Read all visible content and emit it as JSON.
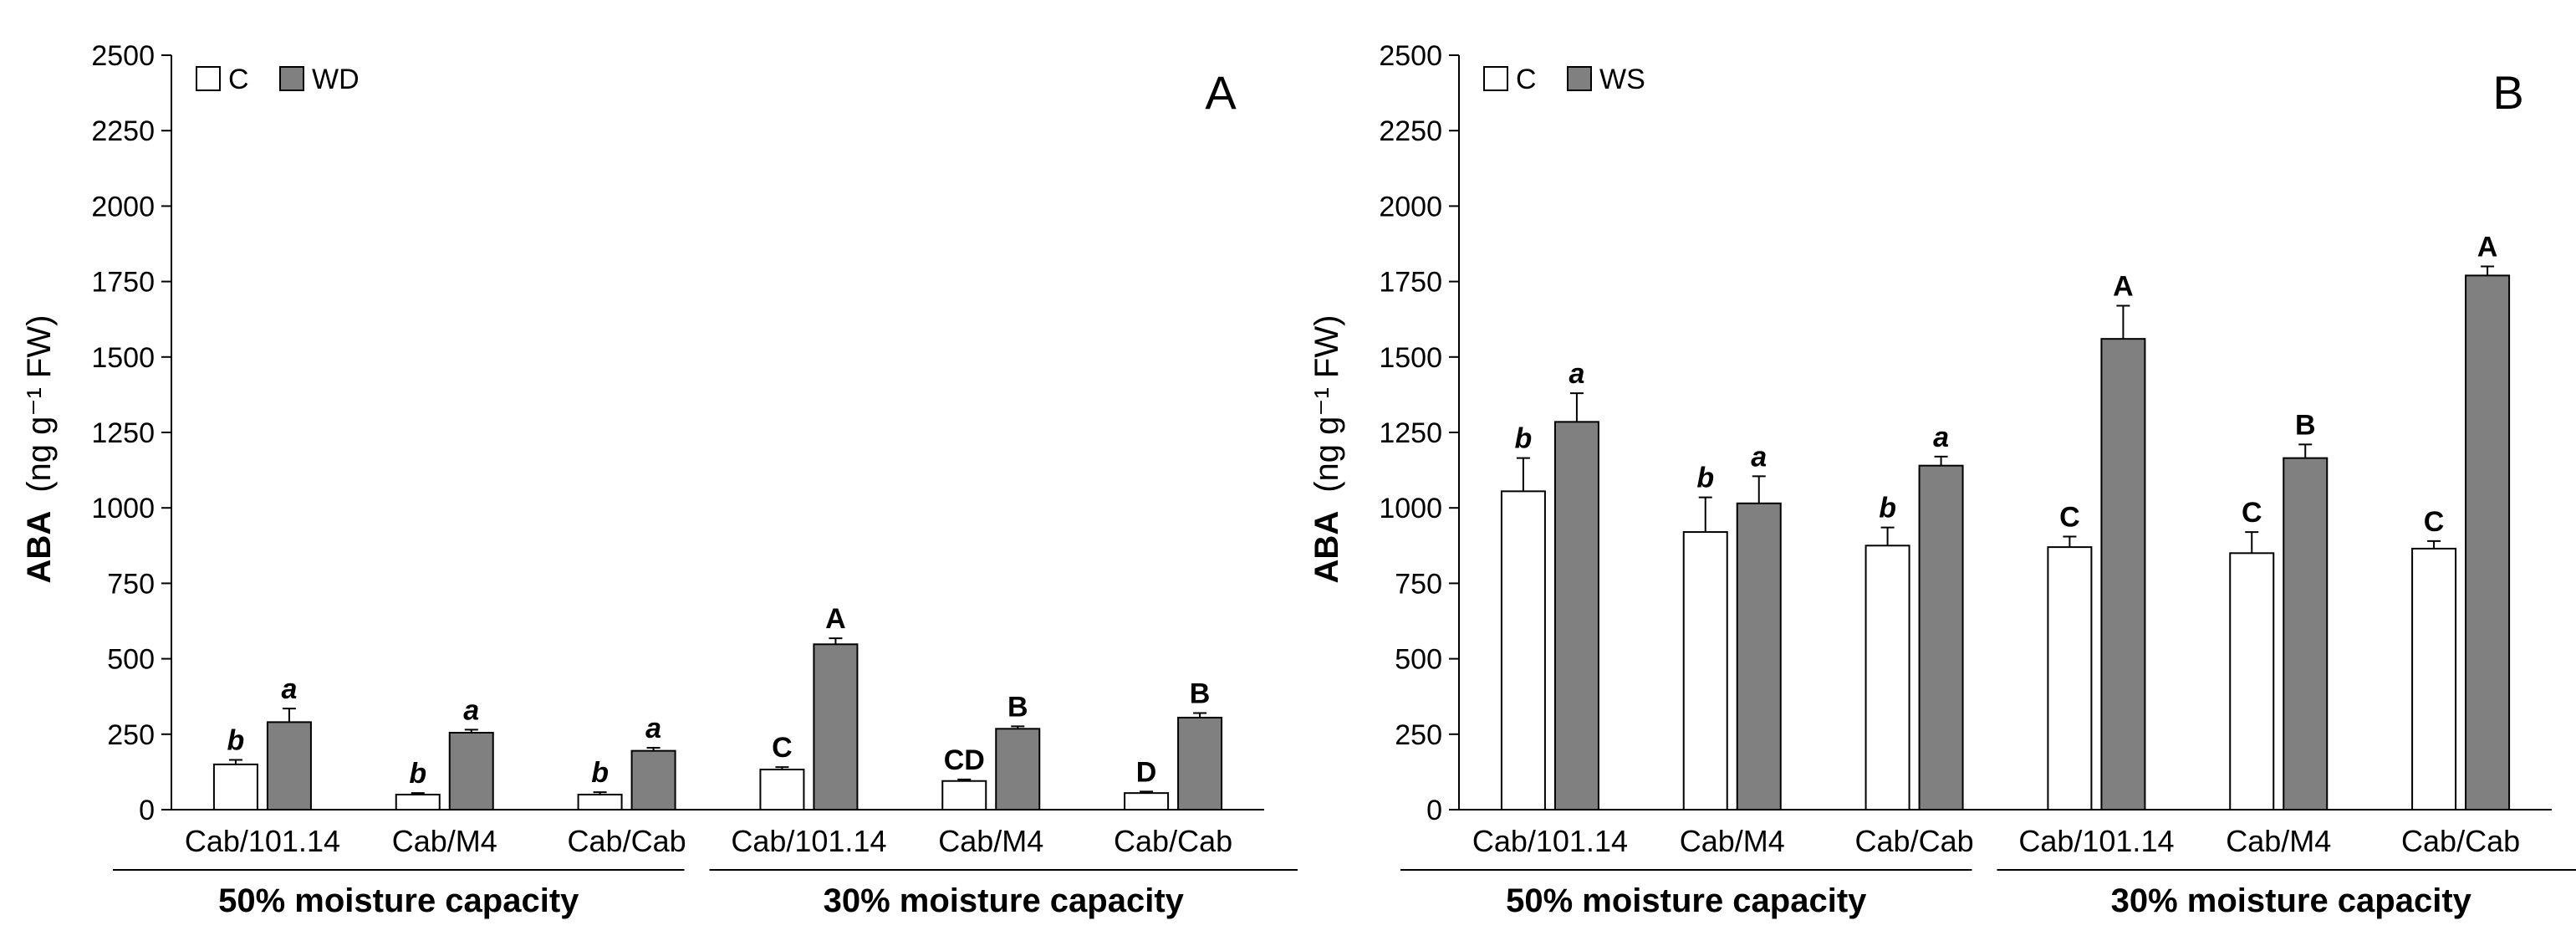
{
  "chart_data": [
    {
      "type": "bar",
      "panel_label": "A",
      "ylabel": "ABA",
      "ylabel_unit": "(ng g⁻¹ FW)",
      "ylim": [
        0,
        2500
      ],
      "yticks": [
        0,
        250,
        500,
        750,
        1000,
        1250,
        1500,
        1750,
        2000,
        2250,
        2500
      ],
      "legend": {
        "position": "top-left",
        "entries": [
          {
            "label": "C",
            "color": "#ffffff"
          },
          {
            "label": "WD",
            "color": "#808080"
          }
        ]
      },
      "groups": [
        {
          "label": "50% moisture capacity",
          "categories": [
            {
              "name": "Cab/101.14",
              "control": 150,
              "control_err": 15,
              "control_sig": "b",
              "treat": 290,
              "treat_err": 45,
              "treat_sig": "a"
            },
            {
              "name": "Cab/M4",
              "control": 50,
              "control_err": 5,
              "control_sig": "b",
              "treat": 255,
              "treat_err": 10,
              "treat_sig": "a"
            },
            {
              "name": "Cab/Cab",
              "control": 50,
              "control_err": 8,
              "control_sig": "b",
              "treat": 195,
              "treat_err": 10,
              "treat_sig": "a"
            }
          ]
        },
        {
          "label": "30% moisture capacity",
          "categories": [
            {
              "name": "Cab/101.14",
              "control": 133,
              "control_err": 8,
              "control_sig": "C",
              "treat": 548,
              "treat_err": 20,
              "treat_sig": "A"
            },
            {
              "name": "Cab/M4",
              "control": 95,
              "control_err": 5,
              "control_sig": "CD",
              "treat": 268,
              "treat_err": 8,
              "treat_sig": "B"
            },
            {
              "name": "Cab/Cab",
              "control": 55,
              "control_err": 5,
              "control_sig": "D",
              "treat": 305,
              "treat_err": 15,
              "treat_sig": "B"
            }
          ]
        }
      ]
    },
    {
      "type": "bar",
      "panel_label": "B",
      "ylabel": "ABA",
      "ylabel_unit": "(ng g⁻¹ FW)",
      "ylim": [
        0,
        2500
      ],
      "yticks": [
        0,
        250,
        500,
        750,
        1000,
        1250,
        1500,
        1750,
        2000,
        2250,
        2500
      ],
      "legend": {
        "position": "top-left",
        "entries": [
          {
            "label": "C",
            "color": "#ffffff"
          },
          {
            "label": "WS",
            "color": "#808080"
          }
        ]
      },
      "groups": [
        {
          "label": "50% moisture capacity",
          "categories": [
            {
              "name": "Cab/101.14",
              "control": 1055,
              "control_err": 110,
              "control_sig": "b",
              "treat": 1285,
              "treat_err": 95,
              "treat_sig": "a"
            },
            {
              "name": "Cab/M4",
              "control": 920,
              "control_err": 115,
              "control_sig": "b",
              "treat": 1015,
              "treat_err": 90,
              "treat_sig": "a"
            },
            {
              "name": "Cab/Cab",
              "control": 875,
              "control_err": 60,
              "control_sig": "b",
              "treat": 1140,
              "treat_err": 30,
              "treat_sig": "a"
            }
          ]
        },
        {
          "label": "30% moisture capacity",
          "categories": [
            {
              "name": "Cab/101.14",
              "control": 870,
              "control_err": 35,
              "control_sig": "C",
              "treat": 1560,
              "treat_err": 110,
              "treat_sig": "A"
            },
            {
              "name": "Cab/M4",
              "control": 850,
              "control_err": 70,
              "control_sig": "C",
              "treat": 1165,
              "treat_err": 45,
              "treat_sig": "B"
            },
            {
              "name": "Cab/Cab",
              "control": 865,
              "control_err": 25,
              "control_sig": "C",
              "treat": 1770,
              "treat_err": 30,
              "treat_sig": "A"
            }
          ]
        }
      ]
    }
  ]
}
